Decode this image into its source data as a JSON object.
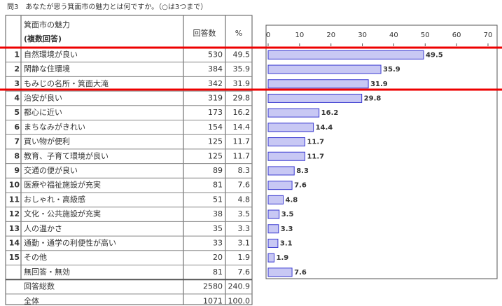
{
  "title": "問3　あなたが思う箕面市の魅力とは何ですか。（○は3つまで）",
  "table": {
    "headers": {
      "item": "箕面市の魅力",
      "item_note": "(複数回答)",
      "count": "回答数",
      "percent": "%"
    },
    "rows": [
      {
        "rank": 1,
        "label": "自然環境が良い",
        "count": 530,
        "percent": 49.5
      },
      {
        "rank": 2,
        "label": "閑静な住環境",
        "count": 384,
        "percent": 35.9
      },
      {
        "rank": 3,
        "label": "もみじの名所・箕面大滝",
        "count": 342,
        "percent": 31.9
      },
      {
        "rank": 4,
        "label": "治安が良い",
        "count": 319,
        "percent": 29.8
      },
      {
        "rank": 5,
        "label": "都心に近い",
        "count": 173,
        "percent": 16.2
      },
      {
        "rank": 6,
        "label": "まちなみがきれい",
        "count": 154,
        "percent": 14.4
      },
      {
        "rank": 7,
        "label": "買い物が便利",
        "count": 125,
        "percent": 11.7
      },
      {
        "rank": 8,
        "label": "教育、子育て環境が良い",
        "count": 125,
        "percent": 11.7
      },
      {
        "rank": 9,
        "label": "交通の便が良い",
        "count": 89,
        "percent": 8.3
      },
      {
        "rank": 10,
        "label": "医療や福祉施設が充実",
        "count": 81,
        "percent": 7.6
      },
      {
        "rank": 11,
        "label": "おしゃれ・高級感",
        "count": 51,
        "percent": 4.8
      },
      {
        "rank": 12,
        "label": "文化・公共施設が充実",
        "count": 38,
        "percent": 3.5
      },
      {
        "rank": 13,
        "label": "人の温かさ",
        "count": 35,
        "percent": 3.3
      },
      {
        "rank": 14,
        "label": "通勤・通学の利便性が高い",
        "count": 33,
        "percent": 3.1
      },
      {
        "rank": 15,
        "label": "その他",
        "count": 20,
        "percent": 1.9
      },
      {
        "label": "無回答・無効",
        "count": 81,
        "percent": 7.6
      }
    ],
    "totals": [
      {
        "label": "回答総数",
        "count": 2580,
        "percent": "240.9"
      },
      {
        "label": "全体",
        "count": 1071,
        "percent": "100.0"
      }
    ]
  },
  "chart": {
    "xlim": [
      0,
      70
    ],
    "xticks": [
      0,
      10,
      20,
      30,
      40,
      50,
      60,
      70
    ],
    "bar_color": "#c8c8f4",
    "bar_edge": "#3a3ad0"
  }
}
